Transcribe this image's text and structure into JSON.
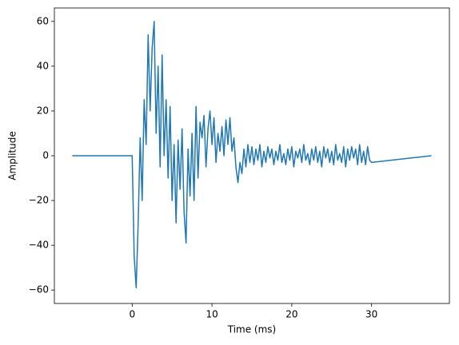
{
  "chart_data": {
    "type": "line",
    "xlabel": "Time (ms)",
    "ylabel": "Amplitude",
    "x": [
      -7.5,
      0,
      0.25,
      0.5,
      0.75,
      1,
      1.25,
      1.5,
      1.75,
      2,
      2.25,
      2.5,
      2.75,
      3,
      3.25,
      3.5,
      3.75,
      4,
      4.25,
      4.5,
      4.75,
      5,
      5.25,
      5.5,
      5.75,
      6,
      6.25,
      6.5,
      6.75,
      7,
      7.25,
      7.5,
      7.75,
      8,
      8.25,
      8.5,
      8.75,
      9,
      9.25,
      9.5,
      9.75,
      10,
      10.25,
      10.5,
      10.75,
      11,
      11.25,
      11.5,
      11.75,
      12,
      12.25,
      12.5,
      12.75,
      13,
      13.25,
      13.5,
      13.75,
      14,
      14.25,
      14.5,
      14.75,
      15,
      15.25,
      15.5,
      15.75,
      16,
      16.25,
      16.5,
      16.75,
      17,
      17.25,
      17.5,
      17.75,
      18,
      18.25,
      18.5,
      18.75,
      19,
      19.25,
      19.5,
      19.75,
      20,
      20.25,
      20.5,
      20.75,
      21,
      21.25,
      21.5,
      21.75,
      22,
      22.25,
      22.5,
      22.75,
      23,
      23.25,
      23.5,
      23.75,
      24,
      24.25,
      24.5,
      24.75,
      25,
      25.25,
      25.5,
      25.75,
      26,
      26.25,
      26.5,
      26.75,
      27,
      27.25,
      27.5,
      27.75,
      28,
      28.25,
      28.5,
      28.75,
      29,
      29.25,
      29.5,
      29.75,
      30,
      37.5
    ],
    "series": [
      {
        "color": "#1f77b4",
        "values": [
          0,
          0,
          -45,
          -59,
          -30,
          8,
          -20,
          25,
          5,
          54,
          20,
          48,
          60,
          10,
          40,
          -5,
          45,
          0,
          25,
          -10,
          22,
          -20,
          5,
          -30,
          7,
          -15,
          12,
          -25,
          -39,
          3,
          -18,
          10,
          -20,
          22,
          -10,
          15,
          8,
          18,
          -5,
          12,
          20,
          5,
          17,
          -3,
          10,
          2,
          13,
          0,
          16,
          5,
          17,
          2,
          8,
          -5,
          -12,
          -3,
          -8,
          3,
          -5,
          5,
          -3,
          4,
          -4,
          3,
          -2,
          5,
          -5,
          2,
          -3,
          4,
          -1,
          3,
          -4,
          2,
          -2,
          5,
          -3,
          1,
          -4,
          3,
          -2,
          4,
          -5,
          2,
          -1,
          3,
          -3,
          5,
          -2,
          1,
          -4,
          3,
          -2,
          4,
          -3,
          2,
          -5,
          4,
          -1,
          3,
          -3,
          2,
          -4,
          5,
          -2,
          1,
          -3,
          4,
          -5,
          3,
          -2,
          4,
          -1,
          3,
          -4,
          5,
          -3,
          2,
          -4,
          4,
          -2,
          -3,
          0
        ]
      }
    ],
    "xlim": [
      -9.75,
      39.75
    ],
    "xticks": [
      0,
      10,
      20,
      30
    ],
    "ylim": [
      -66,
      66
    ],
    "yticks": [
      {
        "value": -60,
        "label": "−60"
      },
      {
        "value": -40,
        "label": "−40"
      },
      {
        "value": -20,
        "label": "−20"
      },
      0,
      20,
      40,
      60
    ]
  }
}
